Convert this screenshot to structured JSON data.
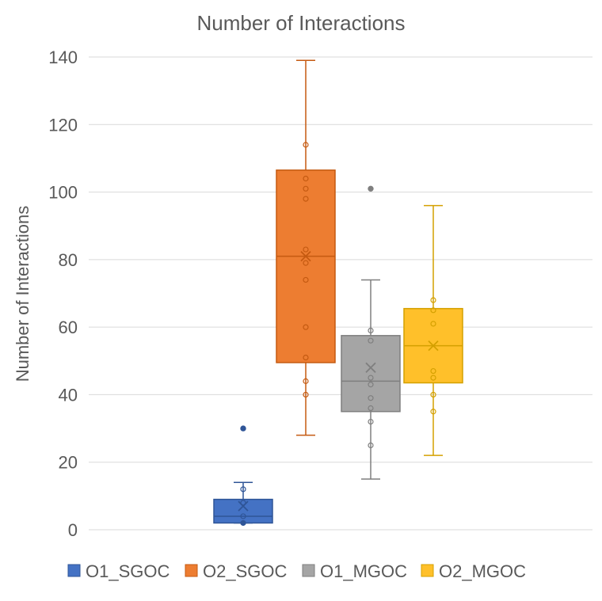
{
  "chart_data": {
    "type": "box",
    "title": "Number of Interactions",
    "xlabel": "",
    "ylabel": "Number of Interactions",
    "ylim": [
      0,
      140
    ],
    "yticks": [
      0,
      20,
      40,
      60,
      80,
      100,
      120,
      140
    ],
    "grid": true,
    "legend_position": "bottom",
    "series": [
      {
        "name": "O1_SGOC",
        "color": "#4472C4",
        "edge": "#2F5597",
        "min": 2,
        "q1": 2,
        "median": 4,
        "q3": 9,
        "max": 14,
        "mean": 7,
        "points": [
          2,
          4,
          8,
          12
        ],
        "outliers": [
          30
        ]
      },
      {
        "name": "O2_SGOC",
        "color": "#ED7D31",
        "edge": "#C55A11",
        "min": 28,
        "q1": 49.5,
        "median": 81,
        "q3": 106.5,
        "max": 139,
        "mean": 81,
        "points": [
          40,
          44,
          51,
          60,
          74,
          79,
          83,
          98,
          101,
          104,
          114
        ],
        "outliers": []
      },
      {
        "name": "O1_MGOC",
        "color": "#A5A5A5",
        "edge": "#7F7F7F",
        "min": 15,
        "q1": 35,
        "median": 44,
        "q3": 57.5,
        "max": 74,
        "mean": 48,
        "points": [
          25,
          32,
          36,
          39,
          43,
          45,
          56,
          59
        ],
        "outliers": [
          101
        ]
      },
      {
        "name": "O2_MGOC",
        "color": "#FFC02A",
        "edge": "#D4A000",
        "min": 22,
        "q1": 43.5,
        "median": 54.5,
        "q3": 65.5,
        "max": 96,
        "mean": 54.5,
        "points": [
          35,
          40,
          45,
          47,
          61,
          65,
          68
        ],
        "outliers": []
      }
    ]
  }
}
